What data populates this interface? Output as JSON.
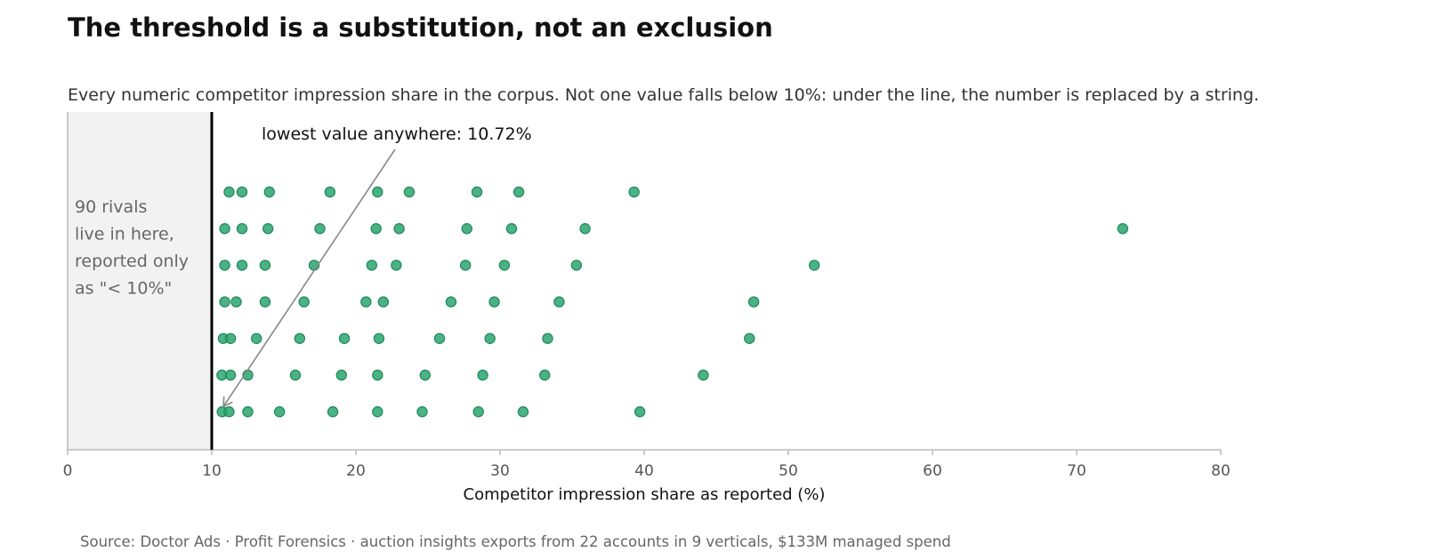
{
  "title": "The threshold is a substitution, not an exclusion",
  "subtitle": "Every numeric competitor impression share in the corpus. Not one value falls below 10%: under the line, the number is replaced by a string.",
  "source": "Source: Doctor Ads · Profit Forensics · auction insights exports from 22 accounts in 9 verticals, $133M managed spend",
  "colors": {
    "point": "#2aa56e",
    "point_stroke": "#1f8a5a",
    "shade": "#f2f2f2",
    "threshold_line": "#000000",
    "axis": "#bbbbbb",
    "arrow": "#888888"
  },
  "chart_data": {
    "type": "scatter",
    "title": "The threshold is a substitution, not an exclusion",
    "xlabel": "Competitor impression share as reported (%)",
    "ylabel": "",
    "xlim": [
      0,
      80
    ],
    "xticks": [
      0,
      10,
      20,
      30,
      40,
      50,
      60,
      70,
      80
    ],
    "xtick_labels": [
      "0",
      "10",
      "20",
      "30",
      "40",
      "50",
      "60",
      "70",
      "80"
    ],
    "threshold": 10,
    "shaded_region": [
      0,
      10
    ],
    "shaded_note": [
      "90 rivals",
      "live in here,",
      "reported only",
      "as \"< 10%\""
    ],
    "annotation": {
      "text": "lowest value anywhere: 10.72%",
      "x": 10.72,
      "row": 0
    },
    "rows": [
      {
        "row": 0,
        "values": [
          10.72,
          11.2,
          12.5,
          14.7,
          18.4,
          21.5,
          24.6,
          28.5,
          31.6,
          39.7
        ]
      },
      {
        "row": 1,
        "values": [
          10.7,
          11.3,
          12.5,
          15.8,
          19.0,
          21.5,
          24.8,
          28.8,
          33.1,
          44.1
        ]
      },
      {
        "row": 2,
        "values": [
          10.8,
          11.3,
          13.1,
          16.1,
          19.2,
          21.6,
          25.8,
          29.3,
          33.3,
          47.3
        ]
      },
      {
        "row": 3,
        "values": [
          10.9,
          11.7,
          13.7,
          16.4,
          20.7,
          21.9,
          26.6,
          29.6,
          34.1,
          47.6
        ]
      },
      {
        "row": 4,
        "values": [
          10.9,
          12.1,
          13.7,
          17.1,
          21.1,
          22.8,
          27.6,
          30.3,
          35.3,
          51.8
        ]
      },
      {
        "row": 5,
        "values": [
          10.9,
          12.1,
          13.9,
          17.5,
          21.4,
          23.0,
          27.7,
          30.8,
          35.9,
          73.2
        ]
      },
      {
        "row": 6,
        "values": [
          11.2,
          12.1,
          14.0,
          18.2,
          21.5,
          23.7,
          28.4,
          31.3,
          39.3
        ]
      }
    ]
  }
}
